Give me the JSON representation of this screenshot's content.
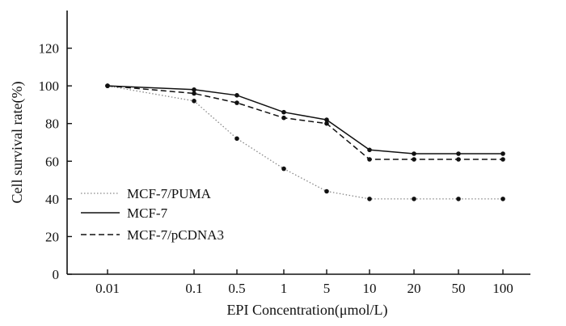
{
  "chart_data": {
    "type": "line",
    "categories": [
      "0.01",
      "0.1",
      "0.5",
      "1",
      "5",
      "10",
      "20",
      "50",
      "100"
    ],
    "xlabel": "EPI Concentration(μmol/L)",
    "ylabel": "Cell survival rate(%)",
    "ylim": [
      0,
      140
    ],
    "yticks": [
      "0",
      "20",
      "40",
      "60",
      "80",
      "100",
      "120"
    ],
    "grid": false,
    "legend_position": "left-bottom",
    "series": [
      {
        "name": "MCF-7/PUMA",
        "style": "dotted",
        "color": "#888888",
        "values": [
          100,
          92,
          72,
          56,
          44,
          40,
          40,
          40,
          40
        ]
      },
      {
        "name": "MCF-7",
        "style": "solid",
        "color": "#111111",
        "values": [
          100,
          98,
          95,
          86,
          82,
          66,
          64,
          64,
          64
        ]
      },
      {
        "name": "MCF-7/pCDNA3",
        "style": "dashed",
        "color": "#111111",
        "values": [
          100,
          96,
          91,
          83,
          80,
          61,
          61,
          61,
          61
        ]
      }
    ]
  }
}
